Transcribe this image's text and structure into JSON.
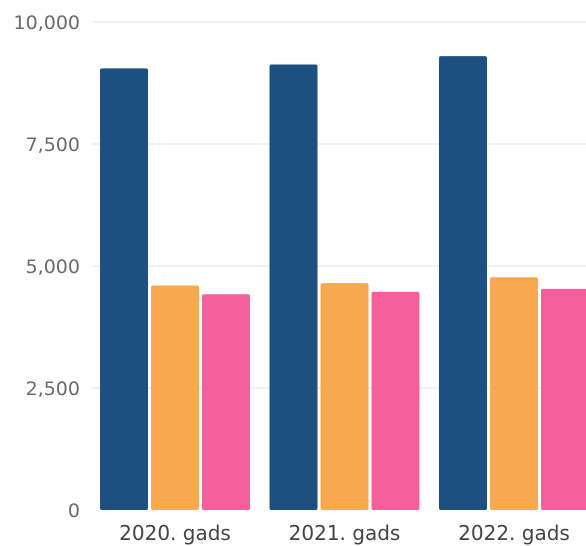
{
  "chart_data": {
    "type": "bar",
    "categories": [
      "2020. gads",
      "2021. gads",
      "2022. gads"
    ],
    "series": [
      {
        "values": [
          9050,
          9130,
          9300
        ],
        "color": "#1d4f80"
      },
      {
        "values": [
          4600,
          4650,
          4770
        ],
        "color": "#f8a94e"
      },
      {
        "values": [
          4420,
          4470,
          4530
        ],
        "color": "#f45f9c"
      }
    ],
    "ylim": [
      0,
      10000
    ],
    "y_ticks": [
      {
        "value": 0,
        "label": "0"
      },
      {
        "value": 2500,
        "label": "2,500"
      },
      {
        "value": 5000,
        "label": "5,000"
      },
      {
        "value": 7500,
        "label": "7,500"
      },
      {
        "value": 10000,
        "label": "10,000"
      }
    ],
    "grid": true,
    "legend": "none"
  }
}
